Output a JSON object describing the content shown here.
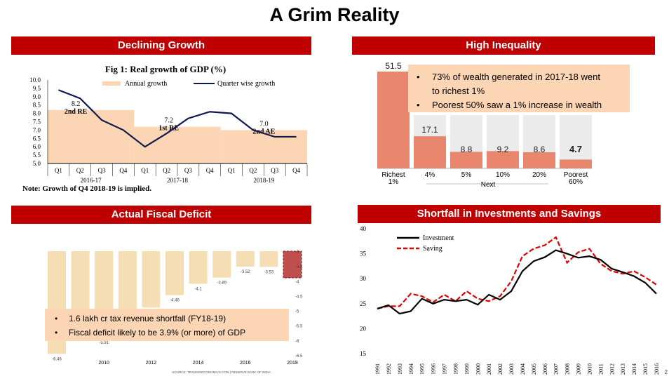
{
  "slide": {
    "title": "A Grim Reality",
    "page_number": "2",
    "banners": {
      "gdp": "Declining Growth",
      "inequality": "High Inequality",
      "deficit": "Actual Fiscal Deficit",
      "invest": "Shortfall in Investments and Savings"
    }
  },
  "chart_data": [
    {
      "id": "gdp",
      "type": "line",
      "title": "Fig 1: Real growth of GDP (%)",
      "yticks": [
        "10.0",
        "9.5",
        "9.0",
        "8.5",
        "8.0",
        "7.5",
        "7.0",
        "6.5",
        "6.0",
        "5.5",
        "5.0"
      ],
      "ylim": [
        5.0,
        10.0
      ],
      "quarters": [
        "Q1",
        "Q2",
        "Q3",
        "Q4",
        "Q1",
        "Q2",
        "Q3",
        "Q4",
        "Q1",
        "Q2",
        "Q3",
        "Q4"
      ],
      "years": [
        "2016-17",
        "2017-18",
        "2018-19"
      ],
      "legend": [
        "Annual growth",
        "Quarter wise growth"
      ],
      "annual": [
        8.2,
        7.2,
        7.0
      ],
      "annual_labels": [
        {
          "value": "8.2",
          "tag": "2nd RE"
        },
        {
          "value": "7.2",
          "tag": "1st RE"
        },
        {
          "value": "7.0",
          "tag": "2nd AE"
        }
      ],
      "quarterly": [
        9.4,
        8.9,
        7.6,
        7.0,
        6.0,
        6.8,
        7.7,
        8.1,
        8.0,
        7.0,
        6.6,
        6.6
      ],
      "note": "Note: Growth of Q4 2018-19 is implied."
    },
    {
      "id": "inequality",
      "type": "bar",
      "categories": [
        "Richest 1%",
        "4%",
        "5%",
        "10%",
        "20%",
        "Poorest 60%"
      ],
      "category_lines": [
        [
          "Richest",
          "1%"
        ],
        [
          "4%"
        ],
        [
          "5%"
        ],
        [
          "10%"
        ],
        [
          "20%"
        ],
        [
          "Poorest",
          "60%"
        ]
      ],
      "values": [
        51.5,
        17.1,
        8.8,
        9.2,
        8.6,
        4.7
      ],
      "value_labels": [
        "51.5",
        "17.1",
        "8.8",
        "9.2",
        "8.6",
        "4.7"
      ],
      "ylim": [
        0,
        51.5
      ],
      "axis_note": "Next",
      "bullets": [
        "73% of wealth generated in 2017-18 went to richest 1%",
        "Poorest 50% saw a 1% increase in wealth"
      ]
    },
    {
      "id": "deficit",
      "type": "bar",
      "ylim": [
        -6.5,
        -3.0
      ],
      "yticks": [
        "-3",
        "-3.5",
        "-4",
        "-4.5",
        "-5",
        "-5.5",
        "-6",
        "-6.5"
      ],
      "x": [
        2008,
        2009,
        2010,
        2011,
        2012,
        2013,
        2014,
        2015,
        2016,
        2017,
        2018
      ],
      "values": [
        -6.46,
        -5.7,
        -5.91,
        -5.2,
        -4.9,
        -4.48,
        -4.1,
        -3.89,
        -3.52,
        -3.53,
        -3.9
      ],
      "value_labels": [
        "-6.46",
        "",
        "-5.91",
        "",
        "",
        "-4.48",
        "-4.1",
        "-3.89",
        "-3.52",
        "-3.53",
        ""
      ],
      "highlight_index": 10,
      "xticks": [
        "2010",
        "2012",
        "2014",
        "2016",
        "2018"
      ],
      "source": "SOURCE: TRADINGECONOMICS.COM | RESERVE BANK OF INDIA",
      "bullets": [
        "1.6 lakh cr tax revenue shortfall (FY18-19)",
        "Fiscal deficit likely to be 3.9% (or more) of GDP"
      ]
    },
    {
      "id": "invest",
      "type": "line",
      "x": [
        1991,
        1992,
        1993,
        1994,
        1995,
        1996,
        1997,
        1998,
        1999,
        2000,
        2001,
        2002,
        2003,
        2004,
        2005,
        2006,
        2007,
        2008,
        2009,
        2010,
        2011,
        2012,
        2013,
        2014,
        2015,
        2016
      ],
      "xticks": [
        "1991",
        "1992",
        "1993",
        "1994",
        "1995",
        "1996",
        "1997",
        "1998",
        "1999",
        "2000",
        "2001",
        "2002",
        "2003",
        "2004",
        "2005",
        "2006",
        "2007",
        "2008",
        "2009",
        "2010",
        "2011",
        "2012",
        "2013",
        "2014",
        "2015",
        "2016"
      ],
      "ylim": [
        15,
        40
      ],
      "yticks": [
        "40",
        "35",
        "30",
        "25",
        "20",
        "15"
      ],
      "series": [
        {
          "name": "Investment",
          "values": [
            24.0,
            24.7,
            23.0,
            23.5,
            26.0,
            25.0,
            25.8,
            25.5,
            25.8,
            24.8,
            26.8,
            25.8,
            27.5,
            31.5,
            33.5,
            34.3,
            35.7,
            35.0,
            34.2,
            34.5,
            33.8,
            32.0,
            31.3,
            30.5,
            29.2,
            27.0
          ]
        },
        {
          "name": "Saving",
          "values": [
            24.0,
            24.5,
            24.5,
            27.0,
            26.5,
            25.3,
            26.8,
            25.5,
            27.5,
            26.0,
            25.5,
            26.5,
            29.5,
            34.5,
            36.0,
            36.7,
            38.3,
            33.2,
            35.3,
            36.0,
            33.0,
            31.5,
            31.0,
            31.5,
            30.3,
            28.8
          ]
        }
      ]
    }
  ]
}
